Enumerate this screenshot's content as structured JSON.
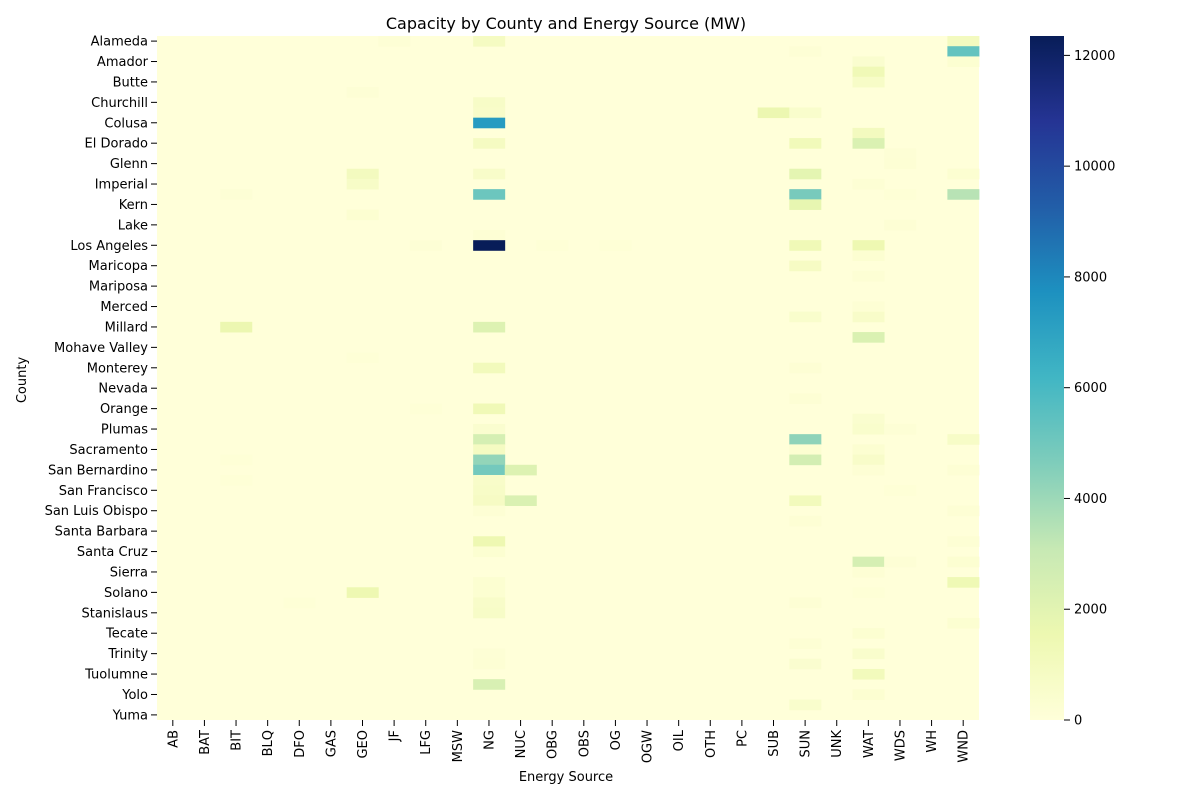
{
  "chart_data": {
    "type": "heatmap",
    "title": "Capacity by County and Energy Source (MW)",
    "xlabel": "Energy Source",
    "ylabel": "County",
    "x_categories": [
      "AB",
      "BAT",
      "BIT",
      "BLQ",
      "DFO",
      "GAS",
      "GEO",
      "JF",
      "LFG",
      "MSW",
      "NG",
      "NUC",
      "OBG",
      "OBS",
      "OG",
      "OGW",
      "OIL",
      "OTH",
      "PC",
      "SUB",
      "SUN",
      "UNK",
      "WAT",
      "WDS",
      "WH",
      "WND"
    ],
    "y_labeled": [
      "Alameda",
      "Amador",
      "Butte",
      "Churchill",
      "Colusa",
      "El Dorado",
      "Glenn",
      "Imperial",
      "Kern",
      "Lake",
      "Los Angeles",
      "Maricopa",
      "Mariposa",
      "Merced",
      "Millard",
      "Mohave Valley",
      "Monterey",
      "Nevada",
      "Orange",
      "Plumas",
      "Sacramento",
      "San Bernardino",
      "San Francisco",
      "San Luis Obispo",
      "Santa Barbara",
      "Santa Cruz",
      "Sierra",
      "Solano",
      "Stanislaus",
      "Tecate",
      "Trinity",
      "Tuolumne",
      "Yolo",
      "Yuma"
    ],
    "y_tick_labels": [
      "Alameda",
      "",
      "Amador",
      "",
      "Butte",
      "",
      "Churchill",
      "",
      "Colusa",
      "",
      "El Dorado",
      "",
      "Glenn",
      "",
      "Imperial",
      "",
      "Kern",
      "",
      "Lake",
      "",
      "Los Angeles",
      "",
      "Maricopa",
      "",
      "Mariposa",
      "",
      "Merced",
      "",
      "Millard",
      "",
      "Mohave Valley",
      "",
      "Monterey",
      "",
      "Nevada",
      "",
      "Orange",
      "",
      "Plumas",
      "",
      "Sacramento",
      "",
      "San Bernardino",
      "",
      "San Francisco",
      "",
      "San Luis Obispo",
      "",
      "Santa Barbara",
      "",
      "Santa Cruz",
      "",
      "Sierra",
      "",
      "Solano",
      "",
      "Stanislaus",
      "",
      "Tecate",
      "",
      "Trinity",
      "",
      "Tuolumne",
      "",
      "Yolo",
      "",
      "Yuma"
    ],
    "cells": [
      {
        "row": 0,
        "col": "NG",
        "value": 900
      },
      {
        "row": 0,
        "col": "JF",
        "value": 150
      },
      {
        "row": 0,
        "col": "WND",
        "value": 1000
      },
      {
        "row": 1,
        "col": "WND",
        "value": 5300
      },
      {
        "row": 1,
        "col": "SUN",
        "value": 150
      },
      {
        "row": 2,
        "col": "WAT",
        "value": 400
      },
      {
        "row": 2,
        "col": "WND",
        "value": 300
      },
      {
        "row": 3,
        "col": "WAT",
        "value": 1300
      },
      {
        "row": 4,
        "col": "WAT",
        "value": 700
      },
      {
        "row": 5,
        "col": "GEO",
        "value": 150
      },
      {
        "row": 6,
        "col": "NG",
        "value": 700
      },
      {
        "row": 7,
        "col": "NG",
        "value": 600
      },
      {
        "row": 7,
        "col": "SUB",
        "value": 1600
      },
      {
        "row": 7,
        "col": "SUN",
        "value": 500
      },
      {
        "row": 8,
        "col": "NG",
        "value": 7300
      },
      {
        "row": 9,
        "col": "WAT",
        "value": 1000
      },
      {
        "row": 10,
        "col": "NG",
        "value": 900
      },
      {
        "row": 10,
        "col": "SUN",
        "value": 1200
      },
      {
        "row": 10,
        "col": "WAT",
        "value": 2300
      },
      {
        "row": 11,
        "col": "WDS",
        "value": 150
      },
      {
        "row": 12,
        "col": "WDS",
        "value": 200
      },
      {
        "row": 13,
        "col": "NG",
        "value": 600
      },
      {
        "row": 13,
        "col": "GEO",
        "value": 1000
      },
      {
        "row": 13,
        "col": "SUN",
        "value": 1900
      },
      {
        "row": 13,
        "col": "WND",
        "value": 300
      },
      {
        "row": 14,
        "col": "GEO",
        "value": 700
      },
      {
        "row": 14,
        "col": "WAT",
        "value": 200
      },
      {
        "row": 15,
        "col": "NG",
        "value": 5100
      },
      {
        "row": 15,
        "col": "SUN",
        "value": 4800
      },
      {
        "row": 15,
        "col": "BIT",
        "value": 150
      },
      {
        "row": 15,
        "col": "WND",
        "value": 3400
      },
      {
        "row": 15,
        "col": "WDS",
        "value": 100
      },
      {
        "row": 16,
        "col": "SUN",
        "value": 1800
      },
      {
        "row": 17,
        "col": "GEO",
        "value": 300
      },
      {
        "row": 18,
        "col": "WDS",
        "value": 200
      },
      {
        "row": 19,
        "col": "NG",
        "value": 200
      },
      {
        "row": 20,
        "col": "NG",
        "value": 12350
      },
      {
        "row": 20,
        "col": "SUN",
        "value": 1300
      },
      {
        "row": 20,
        "col": "WAT",
        "value": 1500
      },
      {
        "row": 20,
        "col": "LFG",
        "value": 150
      },
      {
        "row": 20,
        "col": "OBG",
        "value": 100
      },
      {
        "row": 20,
        "col": "OG",
        "value": 100
      },
      {
        "row": 21,
        "col": "WAT",
        "value": 300
      },
      {
        "row": 22,
        "col": "SUN",
        "value": 800
      },
      {
        "row": 23,
        "col": "WAT",
        "value": 200
      },
      {
        "row": 26,
        "col": "WAT",
        "value": 200
      },
      {
        "row": 27,
        "col": "SUN",
        "value": 500
      },
      {
        "row": 27,
        "col": "WAT",
        "value": 600
      },
      {
        "row": 28,
        "col": "NG",
        "value": 2200
      },
      {
        "row": 28,
        "col": "BIT",
        "value": 1600
      },
      {
        "row": 29,
        "col": "WAT",
        "value": 2300
      },
      {
        "row": 31,
        "col": "GEO",
        "value": 100
      },
      {
        "row": 32,
        "col": "NG",
        "value": 1100
      },
      {
        "row": 32,
        "col": "SUN",
        "value": 200
      },
      {
        "row": 35,
        "col": "SUN",
        "value": 200
      },
      {
        "row": 36,
        "col": "NG",
        "value": 1300
      },
      {
        "row": 36,
        "col": "LFG",
        "value": 100
      },
      {
        "row": 37,
        "col": "WAT",
        "value": 400
      },
      {
        "row": 38,
        "col": "NG",
        "value": 400
      },
      {
        "row": 38,
        "col": "WAT",
        "value": 500
      },
      {
        "row": 38,
        "col": "WDS",
        "value": 150
      },
      {
        "row": 39,
        "col": "NG",
        "value": 2500
      },
      {
        "row": 39,
        "col": "SUN",
        "value": 4300
      },
      {
        "row": 39,
        "col": "WND",
        "value": 700
      },
      {
        "row": 40,
        "col": "NG",
        "value": 900
      },
      {
        "row": 40,
        "col": "SUN",
        "value": 300
      },
      {
        "row": 40,
        "col": "WAT",
        "value": 300
      },
      {
        "row": 41,
        "col": "NG",
        "value": 4200
      },
      {
        "row": 41,
        "col": "SUN",
        "value": 2600
      },
      {
        "row": 41,
        "col": "WAT",
        "value": 600
      },
      {
        "row": 41,
        "col": "BIT",
        "value": 100
      },
      {
        "row": 42,
        "col": "NG",
        "value": 4900
      },
      {
        "row": 42,
        "col": "NUC",
        "value": 2200
      },
      {
        "row": 42,
        "col": "WAT",
        "value": 200
      },
      {
        "row": 42,
        "col": "WND",
        "value": 200
      },
      {
        "row": 43,
        "col": "NG",
        "value": 600
      },
      {
        "row": 43,
        "col": "BIT",
        "value": 100
      },
      {
        "row": 44,
        "col": "NG",
        "value": 700
      },
      {
        "row": 44,
        "col": "WDS",
        "value": 100
      },
      {
        "row": 45,
        "col": "NG",
        "value": 800
      },
      {
        "row": 45,
        "col": "NUC",
        "value": 2300
      },
      {
        "row": 45,
        "col": "SUN",
        "value": 1100
      },
      {
        "row": 46,
        "col": "NG",
        "value": 200
      },
      {
        "row": 46,
        "col": "WND",
        "value": 200
      },
      {
        "row": 47,
        "col": "SUN",
        "value": 200
      },
      {
        "row": 49,
        "col": "NG",
        "value": 1500
      },
      {
        "row": 49,
        "col": "WND",
        "value": 200
      },
      {
        "row": 50,
        "col": "NG",
        "value": 300
      },
      {
        "row": 51,
        "col": "WAT",
        "value": 2500
      },
      {
        "row": 51,
        "col": "WDS",
        "value": 150
      },
      {
        "row": 51,
        "col": "WND",
        "value": 300
      },
      {
        "row": 52,
        "col": "WAT",
        "value": 200
      },
      {
        "row": 53,
        "col": "NG",
        "value": 300
      },
      {
        "row": 53,
        "col": "WND",
        "value": 1400
      },
      {
        "row": 54,
        "col": "NG",
        "value": 300
      },
      {
        "row": 54,
        "col": "GEO",
        "value": 1500
      },
      {
        "row": 54,
        "col": "WAT",
        "value": 100
      },
      {
        "row": 55,
        "col": "NG",
        "value": 600
      },
      {
        "row": 55,
        "col": "DFO",
        "value": 100
      },
      {
        "row": 55,
        "col": "SUN",
        "value": 200
      },
      {
        "row": 56,
        "col": "NG",
        "value": 700
      },
      {
        "row": 57,
        "col": "WND",
        "value": 300
      },
      {
        "row": 58,
        "col": "WAT",
        "value": 300
      },
      {
        "row": 59,
        "col": "SUN",
        "value": 200
      },
      {
        "row": 60,
        "col": "WAT",
        "value": 500
      },
      {
        "row": 60,
        "col": "NG",
        "value": 150
      },
      {
        "row": 61,
        "col": "SUN",
        "value": 400
      },
      {
        "row": 61,
        "col": "NG",
        "value": 200
      },
      {
        "row": 62,
        "col": "WAT",
        "value": 1100
      },
      {
        "row": 63,
        "col": "NG",
        "value": 2400
      },
      {
        "row": 64,
        "col": "WAT",
        "value": 300
      },
      {
        "row": 65,
        "col": "SUN",
        "value": 500
      }
    ],
    "colorbar": {
      "colormap": "YlGnBu",
      "min": 0,
      "max": 12350,
      "ticks": [
        "0",
        "2000",
        "4000",
        "6000",
        "8000",
        "10000",
        "12000"
      ]
    },
    "grid": false,
    "legend": "colorbar on the right"
  }
}
